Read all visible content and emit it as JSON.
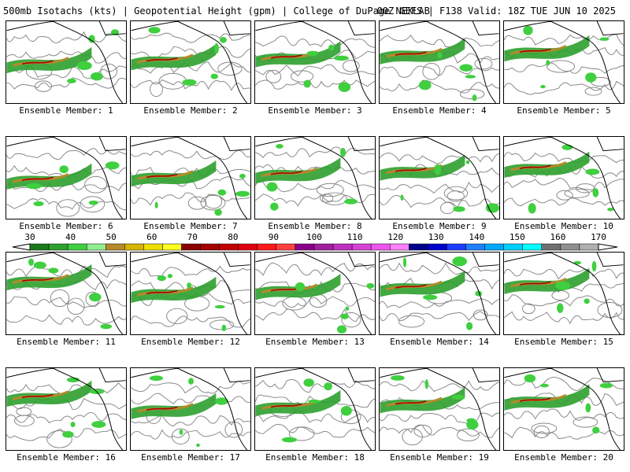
{
  "header": {
    "left": "500mb Isotachs (kts) | Geopotential Height (gpm) | College of DuPage NEXLAB",
    "right": "00Z GEFS | F138 Valid: 18Z TUE JUN 10 2025"
  },
  "panels": [
    {
      "label": "Ensemble Member: 1"
    },
    {
      "label": "Ensemble Member: 2"
    },
    {
      "label": "Ensemble Member: 3"
    },
    {
      "label": "Ensemble Member: 4"
    },
    {
      "label": "Ensemble Member: 5"
    },
    {
      "label": "Ensemble Member: 6"
    },
    {
      "label": "Ensemble Member: 7"
    },
    {
      "label": "Ensemble Member: 8"
    },
    {
      "label": "Ensemble Member: 9"
    },
    {
      "label": "Ensemble Member: 10"
    },
    {
      "label": "Ensemble Member: 11"
    },
    {
      "label": "Ensemble Member: 12"
    },
    {
      "label": "Ensemble Member: 13"
    },
    {
      "label": "Ensemble Member: 14"
    },
    {
      "label": "Ensemble Member: 15"
    },
    {
      "label": "Ensemble Member: 16"
    },
    {
      "label": "Ensemble Member: 17"
    },
    {
      "label": "Ensemble Member: 18"
    },
    {
      "label": "Ensemble Member: 19"
    },
    {
      "label": "Ensemble Member: 20"
    }
  ],
  "colorbar": {
    "ticks": [
      "30",
      "40",
      "50",
      "60",
      "70",
      "80",
      "90",
      "100",
      "110",
      "120",
      "130",
      "140",
      "150",
      "160",
      "170"
    ],
    "colors": [
      "#1c7a1c",
      "#2ea02e",
      "#3fcf3f",
      "#90ee90",
      "#b58a2a",
      "#d6b400",
      "#f0e000",
      "#ffff20",
      "#8b0000",
      "#a40000",
      "#c40000",
      "#e00010",
      "#ff1a1a",
      "#ff4040",
      "#8b008b",
      "#a020a0",
      "#c030c0",
      "#d840d8",
      "#ee55ee",
      "#ff80ff",
      "#00008b",
      "#0000cd",
      "#1e3cff",
      "#1f7fff",
      "#00a8ff",
      "#00d0ff",
      "#00ffff",
      "#707070",
      "#909090",
      "#b0b0b0"
    ]
  }
}
